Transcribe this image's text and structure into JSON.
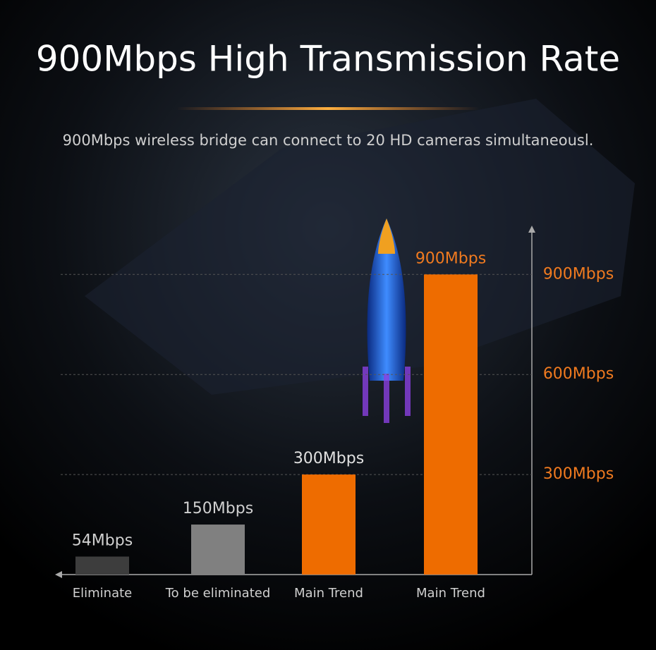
{
  "chart_data": {
    "type": "bar",
    "title": "900Mbps High Transmission Rate",
    "subtitle": "900Mbps wireless bridge can connect to 20 HD cameras simultaneousl.",
    "categories": [
      "Eliminate",
      "To be eliminated",
      "Main Trend",
      "Main Trend"
    ],
    "values": [
      54,
      150,
      300,
      900
    ],
    "value_labels": [
      "54Mbps",
      "150Mbps",
      "300Mbps",
      "900Mbps"
    ],
    "colors": [
      "#3d3d3d",
      "#808080",
      "#ee6c00",
      "#ee6c00"
    ],
    "label_colors": [
      "#d0d0d0",
      "#d0d0d0",
      "#e0e0e0",
      "#f07a1f"
    ],
    "ylim": [
      0,
      1000
    ],
    "yticks": [
      {
        "value": 300,
        "label": "300Mbps"
      },
      {
        "value": 600,
        "label": "600Mbps"
      },
      {
        "value": 900,
        "label": "900Mbps"
      }
    ],
    "grid": true
  }
}
